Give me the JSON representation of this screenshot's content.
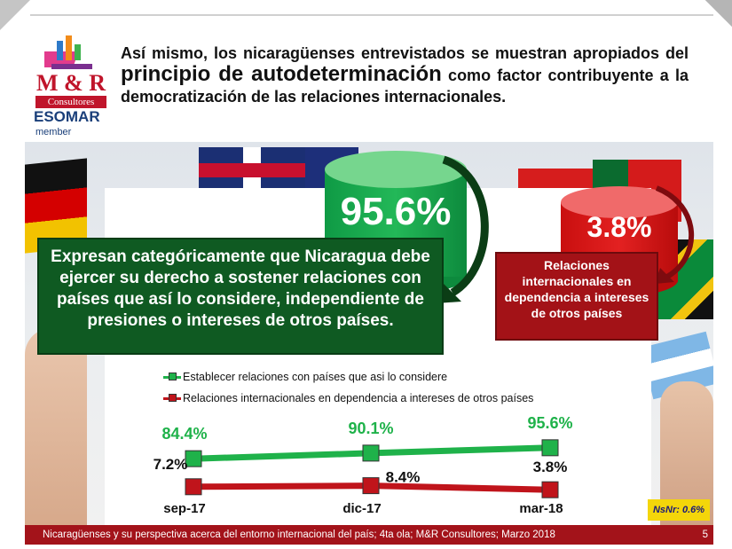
{
  "logo": {
    "name": "M & R",
    "subtitle": "Consultores",
    "esomar": "ESOMAR",
    "member": "member"
  },
  "heading": {
    "part1": "Así mismo, los nicaragüenses entrevistados se muestran apropiados del ",
    "emphasis": "principio de autodeterminación",
    "part2": " como factor contribuyente a la democratización de las relaciones internacionales."
  },
  "highlights": {
    "green_value": "95.6%",
    "red_value": "3.8%",
    "green_text": "Expresan categóricamente que Nicaragua debe ejercer su derecho a sostener relaciones con países que así lo considere, independiente de presiones o intereses de otros países.",
    "red_text": "Relaciones internacionales en dependencia a intereses de otros países"
  },
  "colors": {
    "green": "#1fb24a",
    "red": "#c0141b",
    "dark_green": "#0f5a22",
    "dark_red": "#a31217"
  },
  "chart_data": {
    "type": "line",
    "categories": [
      "sep-17",
      "dic-17",
      "mar-18"
    ],
    "series": [
      {
        "name": "Establecer relaciones con países que asi lo considere",
        "values": [
          84.4,
          90.1,
          95.6
        ],
        "labels": [
          "84.4%",
          "90.1%",
          "95.6%"
        ],
        "color": "#1fb24a"
      },
      {
        "name": "Relaciones internacionales en dependencia a intereses de otros países",
        "values": [
          7.2,
          8.4,
          3.8
        ],
        "labels": [
          "7.2%",
          "8.4%",
          "3.8%"
        ],
        "color": "#c0141b"
      }
    ],
    "ylim": [
      0,
      100
    ],
    "grid": false,
    "legend": "top"
  },
  "note": "NsNr: 0.6%",
  "footer": {
    "text": "Nicaragüenses y su perspectiva acerca del entorno internacional del país; 4ta ola; M&R Consultores; Marzo 2018",
    "page": "5"
  }
}
